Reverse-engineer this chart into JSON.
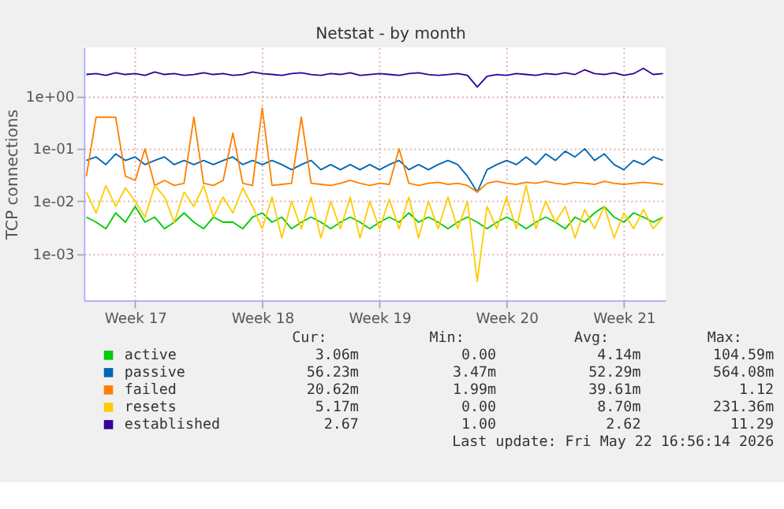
{
  "chart_data": {
    "type": "line",
    "title": "Netstat - by month",
    "ylabel": "TCP connections",
    "log": true,
    "grid": true,
    "legend": "bottom",
    "line_style": "solid",
    "marker": "none",
    "categories": [
      null,
      null,
      null,
      null,
      null,
      "Week 17",
      null,
      null,
      null,
      null,
      null,
      null,
      null,
      null,
      null,
      null,
      null,
      null,
      "Week 18",
      null,
      null,
      null,
      null,
      null,
      null,
      null,
      null,
      null,
      null,
      null,
      "Week 19",
      null,
      null,
      null,
      null,
      null,
      null,
      null,
      null,
      null,
      null,
      null,
      null,
      "Week 20",
      null,
      null,
      null,
      null,
      null,
      null,
      null,
      null,
      null,
      null,
      null,
      "Week 21",
      null,
      null,
      null,
      null
    ],
    "ylim": [
      0.00013,
      8.5
    ],
    "yticks": [
      {
        "value": 0.001,
        "label": "1e-03"
      },
      {
        "value": 0.01,
        "label": "1e-02"
      },
      {
        "value": 0.1,
        "label": "1e-01"
      },
      {
        "value": 1,
        "label": "1e+00"
      }
    ],
    "series": [
      {
        "name": "active",
        "color": "#00cc00",
        "values": [
          0.005,
          0.004,
          0.003,
          0.006,
          0.004,
          0.008,
          0.004,
          0.005,
          0.003,
          0.004,
          0.006,
          0.004,
          0.003,
          0.005,
          0.004,
          0.004,
          0.003,
          0.005,
          0.006,
          0.004,
          0.005,
          0.003,
          0.004,
          0.005,
          0.004,
          0.003,
          0.004,
          0.005,
          0.004,
          0.003,
          0.004,
          0.005,
          0.004,
          0.006,
          0.004,
          0.005,
          0.004,
          0.003,
          0.004,
          0.005,
          0.004,
          0.003,
          0.004,
          0.005,
          0.004,
          0.003,
          0.004,
          0.005,
          0.004,
          0.003,
          0.005,
          0.004,
          0.006,
          0.008,
          0.005,
          0.004,
          0.006,
          0.005,
          0.004,
          0.005
        ]
      },
      {
        "name": "passive",
        "color": "#0066b3",
        "values": [
          0.06,
          0.07,
          0.05,
          0.08,
          0.06,
          0.07,
          0.05,
          0.06,
          0.07,
          0.05,
          0.06,
          0.05,
          0.06,
          0.05,
          0.06,
          0.07,
          0.05,
          0.06,
          0.05,
          0.06,
          0.05,
          0.04,
          0.05,
          0.06,
          0.04,
          0.05,
          0.04,
          0.05,
          0.04,
          0.05,
          0.04,
          0.05,
          0.06,
          0.04,
          0.05,
          0.04,
          0.05,
          0.06,
          0.05,
          0.03,
          0.015,
          0.04,
          0.05,
          0.06,
          0.05,
          0.07,
          0.05,
          0.08,
          0.06,
          0.09,
          0.07,
          0.1,
          0.06,
          0.08,
          0.05,
          0.04,
          0.06,
          0.05,
          0.07,
          0.06
        ]
      },
      {
        "name": "failed",
        "color": "#ff8000",
        "values": [
          0.03,
          0.4,
          0.4,
          0.4,
          0.03,
          0.025,
          0.1,
          0.02,
          0.025,
          0.02,
          0.022,
          0.4,
          0.022,
          0.02,
          0.025,
          0.2,
          0.022,
          0.02,
          0.6,
          0.02,
          0.021,
          0.022,
          0.4,
          0.022,
          0.021,
          0.02,
          0.022,
          0.025,
          0.022,
          0.02,
          0.022,
          0.021,
          0.1,
          0.022,
          0.02,
          0.022,
          0.023,
          0.021,
          0.022,
          0.02,
          0.015,
          0.022,
          0.024,
          0.022,
          0.021,
          0.023,
          0.022,
          0.024,
          0.022,
          0.021,
          0.023,
          0.022,
          0.021,
          0.024,
          0.022,
          0.021,
          0.022,
          0.023,
          0.022,
          0.021
        ]
      },
      {
        "name": "resets",
        "color": "#ffcc00",
        "values": [
          0.015,
          0.006,
          0.02,
          0.008,
          0.018,
          0.01,
          0.005,
          0.02,
          0.012,
          0.004,
          0.015,
          0.008,
          0.02,
          0.005,
          0.012,
          0.006,
          0.018,
          0.008,
          0.003,
          0.012,
          0.002,
          0.01,
          0.003,
          0.012,
          0.002,
          0.01,
          0.003,
          0.012,
          0.002,
          0.01,
          0.003,
          0.011,
          0.003,
          0.012,
          0.002,
          0.01,
          0.003,
          0.012,
          0.003,
          0.01,
          0.0003,
          0.008,
          0.003,
          0.012,
          0.003,
          0.02,
          0.003,
          0.01,
          0.004,
          0.008,
          0.002,
          0.007,
          0.003,
          0.008,
          0.002,
          0.006,
          0.003,
          0.007,
          0.003,
          0.005
        ]
      },
      {
        "name": "established",
        "color": "#330099",
        "values": [
          2.6,
          2.7,
          2.5,
          2.8,
          2.6,
          2.7,
          2.5,
          2.9,
          2.6,
          2.7,
          2.5,
          2.6,
          2.8,
          2.6,
          2.7,
          2.5,
          2.6,
          2.9,
          2.7,
          2.6,
          2.5,
          2.7,
          2.8,
          2.6,
          2.5,
          2.7,
          2.6,
          2.8,
          2.5,
          2.6,
          2.7,
          2.6,
          2.5,
          2.7,
          2.8,
          2.6,
          2.5,
          2.6,
          2.7,
          2.5,
          1.5,
          2.4,
          2.6,
          2.5,
          2.7,
          2.6,
          2.5,
          2.7,
          2.6,
          2.8,
          2.6,
          3.2,
          2.7,
          2.6,
          2.8,
          2.5,
          2.7,
          3.4,
          2.6,
          2.7
        ]
      }
    ],
    "annotations": [
      "Cur:",
      "Min:",
      "Avg:",
      "Max:",
      "3.06m",
      "0.00",
      "4.14m",
      "104.59m",
      "56.23m",
      "3.47m",
      "52.29m",
      "564.08m",
      "20.62m",
      "1.99m",
      "39.61m",
      "1.12",
      "5.17m",
      "0.00",
      "8.70m",
      "231.36m",
      "2.67",
      "1.00",
      "2.62",
      "11.29",
      "Last update: Fri May 22 16:56:14 2026"
    ]
  }
}
